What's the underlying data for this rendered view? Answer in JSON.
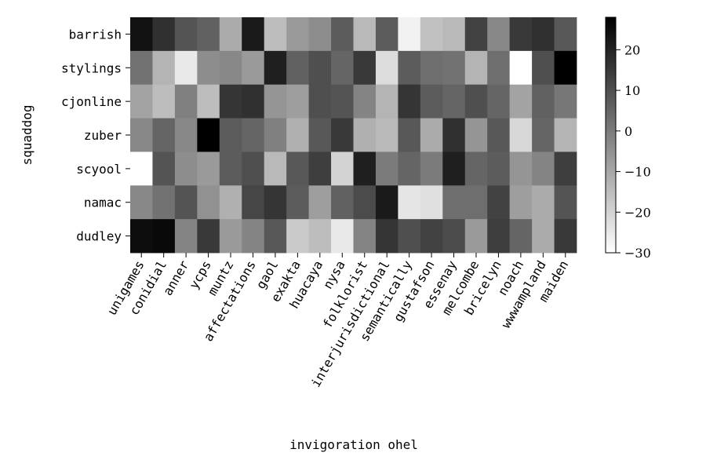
{
  "chart_data": {
    "type": "heatmap",
    "title": "",
    "xlabel": "invigoration ohel",
    "ylabel": "squaddog",
    "x_categories": [
      "unigames",
      "conidial",
      "anner",
      "ycps",
      "muntz",
      "affectations",
      "gaol",
      "exakta",
      "huacaya",
      "nysa",
      "folklorist",
      "interjurisdictional",
      "semantically",
      "gustafson",
      "essenay",
      "melcombe",
      "bricelyn",
      "noach",
      "wwwampland",
      "maiden"
    ],
    "y_categories": [
      "barrish",
      "stylings",
      "cjonline",
      "zuber",
      "scyool",
      "namac",
      "dudley"
    ],
    "values": [
      [
        24,
        17,
        9,
        6,
        -11,
        22,
        -15,
        -7,
        -4,
        7,
        -14,
        7,
        -27,
        -16,
        -14,
        13,
        -3,
        15,
        17,
        8
      ],
      [
        2,
        -13,
        -25,
        -4,
        -3,
        -7,
        21,
        6,
        10,
        5,
        15,
        -22,
        7,
        3,
        2,
        -13,
        3,
        -30,
        10,
        28
      ],
      [
        -9,
        -15,
        -1,
        -15,
        16,
        17,
        -6,
        -8,
        10,
        9,
        -2,
        -13,
        16,
        7,
        5,
        10,
        5,
        -9,
        6,
        1
      ],
      [
        -3,
        5,
        -3,
        28,
        7,
        5,
        -1,
        -12,
        8,
        15,
        -12,
        -14,
        8,
        -11,
        17,
        -6,
        8,
        -21,
        5,
        -13
      ],
      [
        -30,
        9,
        -4,
        -7,
        7,
        10,
        -14,
        8,
        14,
        -20,
        21,
        0,
        5,
        0,
        21,
        5,
        7,
        -6,
        -2,
        14
      ],
      [
        -3,
        2,
        9,
        -5,
        -12,
        12,
        16,
        7,
        -8,
        6,
        11,
        22,
        -24,
        -23,
        3,
        3,
        13,
        -8,
        -11,
        9
      ],
      [
        25,
        26,
        -2,
        15,
        -7,
        -2,
        8,
        -18,
        -15,
        -25,
        -2,
        16,
        10,
        13,
        11,
        -7,
        14,
        5,
        -11,
        15
      ]
    ],
    "colorbar": {
      "min": -30,
      "max": 28,
      "colormap": "Greys",
      "tick_values": [
        -30,
        -20,
        -10,
        0,
        10,
        20
      ],
      "tick_labels": [
        "−30",
        "−20",
        "−10",
        "0",
        "10",
        "20"
      ]
    }
  }
}
